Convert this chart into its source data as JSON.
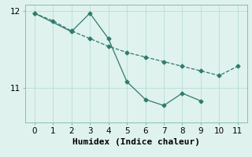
{
  "line1_x": [
    0,
    1,
    2,
    3,
    4,
    5,
    6,
    7,
    8,
    9,
    10,
    11
  ],
  "line1_y": [
    11.97,
    11.87,
    11.74,
    11.64,
    11.54,
    11.46,
    11.4,
    11.34,
    11.28,
    11.22,
    11.16,
    11.28
  ],
  "line2_x": [
    0,
    2,
    3,
    4,
    5,
    6,
    7,
    8,
    9
  ],
  "line2_y": [
    11.97,
    11.73,
    11.97,
    11.64,
    11.08,
    10.85,
    10.77,
    10.93,
    10.83
  ],
  "line_color": "#317a6e",
  "bg_color": "#dff2ee",
  "xlabel": "Humidex (Indice chaleur)",
  "xlim": [
    -0.5,
    11.5
  ],
  "ylim": [
    10.55,
    12.08
  ],
  "yticks": [
    11,
    12
  ],
  "xticks": [
    0,
    1,
    2,
    3,
    4,
    5,
    6,
    7,
    8,
    9,
    10,
    11
  ],
  "xlabel_fontsize": 8,
  "tick_fontsize": 7.5,
  "grid_color": "#b8ddd6",
  "spine_color": "#8bbcb4"
}
